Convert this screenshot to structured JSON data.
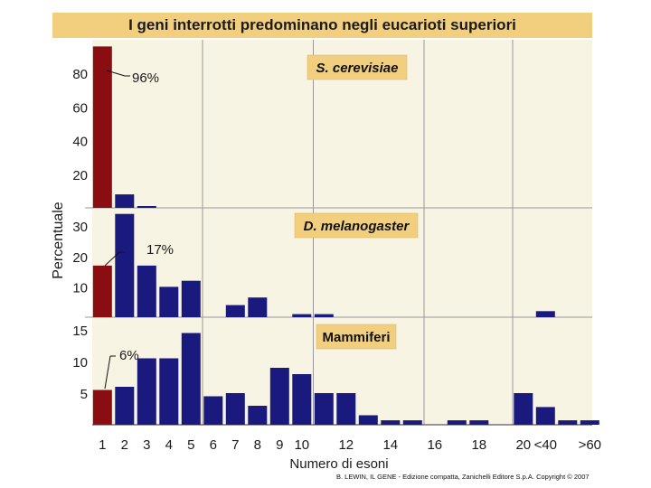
{
  "chart_data": {
    "type": "bar",
    "title": "I geni interrotti predominano negli eucarioti superiori",
    "xlabel": "Numero di esoni",
    "ylabel": "Percentuale",
    "x_tick_labels": [
      "1",
      "2",
      "3",
      "4",
      "5",
      "6",
      "7",
      "8",
      "9",
      "10",
      "12",
      "14",
      "16",
      "18",
      "20",
      "<40",
      ">60"
    ],
    "colors": {
      "highlight": "#8a0d12",
      "bar": "#1a1a7e",
      "panel": "#f7f4e4",
      "grid": "#9a9a9a",
      "title_band": "#f2cf7e",
      "label_box": "#f2cf7e"
    },
    "panels": [
      {
        "name": "S. cerevisiae",
        "ylim": [
          0,
          100
        ],
        "yticks": [
          20,
          40,
          60,
          80
        ],
        "annotation": "96%",
        "values": [
          96,
          8,
          1,
          null,
          null,
          null,
          null,
          null,
          null,
          null,
          null,
          null,
          null,
          null,
          null,
          null,
          null,
          null,
          null,
          null,
          null,
          null
        ]
      },
      {
        "name": "D. melanogaster",
        "ylim": [
          0,
          36
        ],
        "yticks": [
          10,
          20,
          30
        ],
        "annotation": "17%",
        "values": [
          17,
          34,
          17,
          10,
          12,
          null,
          4,
          6.5,
          null,
          1,
          1,
          null,
          null,
          null,
          null,
          null,
          null,
          null,
          null,
          null,
          2,
          null
        ]
      },
      {
        "name": "Mammiferi",
        "ylim": [
          0,
          17
        ],
        "yticks": [
          5,
          10,
          15
        ],
        "annotation": "6%",
        "values": [
          5.5,
          6,
          10.5,
          10.5,
          14.5,
          4.5,
          5,
          3,
          9,
          8,
          5,
          5,
          1.5,
          0.7,
          0.7,
          null,
          0.7,
          0.7,
          null,
          5,
          2.8,
          0.7,
          0.7
        ]
      }
    ]
  },
  "credit": "B. LEWIN, IL GENE - Edizione compatta, Zanichelli Editore S.p.A. Copyright © 2007"
}
